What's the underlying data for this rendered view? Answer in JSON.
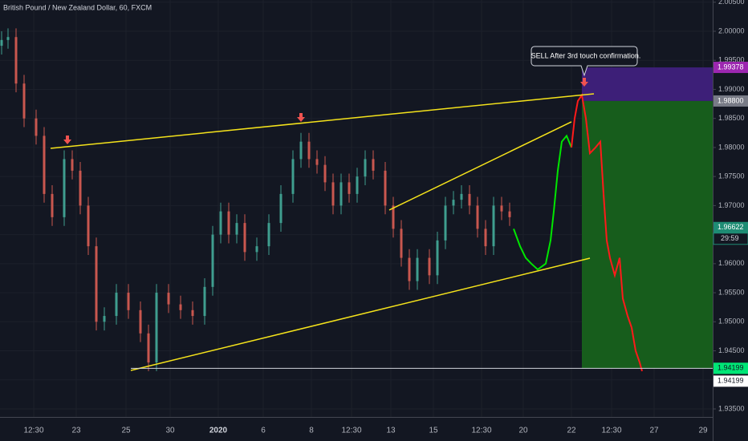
{
  "chart_data": {
    "type": "candlestick",
    "title": "British Pound / New Zealand Dollar, 60, FXCM",
    "annotation": "SELL After 3rd touch confirmation.",
    "countdown": "29:59",
    "xlim": [
      0,
      222
    ],
    "xticks": [
      {
        "value": 10.5,
        "label": "12:30"
      },
      {
        "value": 23.75,
        "label": "23"
      },
      {
        "value": 39.25,
        "label": "25"
      },
      {
        "value": 53,
        "label": "30"
      },
      {
        "value": 68,
        "label": "2020"
      },
      {
        "value": 82,
        "label": "6"
      },
      {
        "value": 97,
        "label": "8"
      },
      {
        "value": 109.5,
        "label": "12:30"
      },
      {
        "value": 121.75,
        "label": "13"
      },
      {
        "value": 135,
        "label": "15"
      },
      {
        "value": 150,
        "label": "12:30"
      },
      {
        "value": 163,
        "label": "20"
      },
      {
        "value": 178,
        "label": "22"
      },
      {
        "value": 190.5,
        "label": "12:30"
      },
      {
        "value": 203.75,
        "label": "27"
      },
      {
        "value": 219,
        "label": "29"
      }
    ],
    "ylim": [
      1.93362,
      2.00538
    ],
    "yticks": [
      {
        "value": 1.935,
        "label": "1.93500"
      },
      {
        "value": 1.94,
        "label": "1.94000"
      },
      {
        "value": 1.945,
        "label": "1.94500"
      },
      {
        "value": 1.95,
        "label": "1.95000"
      },
      {
        "value": 1.955,
        "label": "1.95500"
      },
      {
        "value": 1.96,
        "label": "1.96000"
      },
      {
        "value": 1.965,
        "label": "1.96500"
      },
      {
        "value": 1.97,
        "label": "1.97000"
      },
      {
        "value": 1.975,
        "label": "1.97500"
      },
      {
        "value": 1.98,
        "label": "1.98000"
      },
      {
        "value": 1.985,
        "label": "1.98500"
      },
      {
        "value": 1.99,
        "label": "1.99000"
      },
      {
        "value": 1.995,
        "label": "1.99500"
      },
      {
        "value": 2.0,
        "label": "2.00000"
      },
      {
        "value": 2.005,
        "label": "2.00500"
      }
    ],
    "grid": true,
    "up_color": "#3f9e8f",
    "down_color": "#c9574f",
    "x": [
      0.5,
      2.5,
      5,
      7.5,
      11.25,
      13.75,
      16.25,
      20,
      22.5,
      25,
      27.5,
      30,
      32.5,
      36.25,
      40,
      43.75,
      46.25,
      48.75,
      52.5,
      56.25,
      60,
      63.75,
      66.25,
      68.75,
      71.25,
      73.75,
      76.25,
      80,
      83.75,
      87.5,
      91.25,
      93.75,
      96.25,
      98.75,
      101.25,
      103.75,
      106.25,
      108.75,
      111.25,
      113.75,
      116.25,
      120,
      122.5,
      125,
      127.5,
      130,
      133.75,
      136.25,
      138.75,
      141.25,
      143.75,
      146.25,
      148.75,
      151.25,
      153.75,
      156.25,
      158.75
    ],
    "open": [
      1.9975,
      1.9985,
      1.999,
      1.991,
      1.985,
      1.982,
      1.972,
      1.968,
      1.978,
      1.976,
      1.97,
      1.963,
      1.95,
      1.951,
      1.955,
      1.952,
      1.948,
      1.943,
      1.955,
      1.953,
      1.952,
      1.951,
      1.956,
      1.965,
      1.969,
      1.965,
      1.967,
      1.962,
      1.963,
      1.967,
      1.972,
      1.978,
      1.981,
      1.978,
      1.977,
      1.974,
      1.97,
      1.974,
      1.972,
      1.975,
      1.978,
      1.976,
      1.97,
      1.966,
      1.961,
      1.957,
      1.961,
      1.958,
      1.964,
      1.97,
      1.971,
      1.972,
      1.97,
      1.966,
      1.963,
      1.97,
      1.969
    ],
    "high": [
      2.0,
      2.0005,
      2.0005,
      1.9925,
      1.9865,
      1.9835,
      1.9735,
      1.9795,
      1.9795,
      1.9775,
      1.9715,
      1.9645,
      1.9525,
      1.9565,
      1.9565,
      1.9535,
      1.9495,
      1.9565,
      1.9565,
      1.9545,
      1.9535,
      1.9575,
      1.9665,
      1.9705,
      1.9705,
      1.9685,
      1.9685,
      1.9645,
      1.9685,
      1.9735,
      1.9795,
      1.9825,
      1.9825,
      1.9795,
      1.9785,
      1.9755,
      1.9755,
      1.9755,
      1.9765,
      1.9795,
      1.9795,
      1.9775,
      1.9715,
      1.9675,
      1.9625,
      1.9625,
      1.9625,
      1.9655,
      1.9715,
      1.9725,
      1.9735,
      1.9735,
      1.9715,
      1.9675,
      1.9715,
      1.9715,
      1.9705
    ],
    "low": [
      1.996,
      1.997,
      1.9895,
      1.9835,
      1.9805,
      1.9705,
      1.9665,
      1.9665,
      1.9745,
      1.9685,
      1.9615,
      1.9485,
      1.9485,
      1.9495,
      1.9505,
      1.9465,
      1.9415,
      1.9415,
      1.9515,
      1.9505,
      1.9495,
      1.9495,
      1.9545,
      1.9635,
      1.9635,
      1.9635,
      1.9605,
      1.9605,
      1.9615,
      1.9655,
      1.9705,
      1.9765,
      1.9765,
      1.9755,
      1.9725,
      1.9685,
      1.9685,
      1.9705,
      1.9705,
      1.9735,
      1.9745,
      1.9685,
      1.9645,
      1.9595,
      1.9555,
      1.9555,
      1.9565,
      1.9565,
      1.9625,
      1.9685,
      1.9695,
      1.9685,
      1.9645,
      1.9615,
      1.9615,
      1.9675,
      1.9665
    ],
    "close": [
      1.9985,
      1.999,
      1.991,
      1.985,
      1.982,
      1.972,
      1.968,
      1.978,
      1.976,
      1.97,
      1.963,
      1.95,
      1.951,
      1.955,
      1.952,
      1.948,
      1.943,
      1.955,
      1.953,
      1.952,
      1.951,
      1.956,
      1.965,
      1.969,
      1.965,
      1.967,
      1.962,
      1.963,
      1.967,
      1.972,
      1.978,
      1.981,
      1.978,
      1.977,
      1.974,
      1.97,
      1.974,
      1.972,
      1.975,
      1.978,
      1.976,
      1.97,
      1.966,
      1.961,
      1.957,
      1.961,
      1.958,
      1.964,
      1.97,
      1.971,
      1.972,
      1.97,
      1.966,
      1.963,
      1.97,
      1.969,
      1.968
    ],
    "lines": [
      {
        "color": "#00e600",
        "x": [
          160,
          162,
          163.75,
          165.5,
          167.5,
          170,
          171.5,
          172.5,
          173.75,
          175,
          176.5,
          178
        ],
        "values": [
          1.966,
          1.963,
          1.961,
          1.96,
          1.959,
          1.96,
          1.964,
          1.969,
          1.976,
          1.981,
          1.982,
          1.98
        ]
      },
      {
        "color": "#ff1a1a",
        "x": [
          178,
          179,
          180,
          181.25,
          182.5,
          183.75,
          185.5,
          187,
          188,
          189,
          190,
          191.5,
          193,
          194,
          195.5,
          196.75,
          198,
          199.25,
          200
        ],
        "values": [
          1.98,
          1.985,
          1.988,
          1.989,
          1.985,
          1.979,
          1.98,
          1.981,
          1.972,
          1.964,
          1.961,
          1.958,
          1.961,
          1.954,
          1.951,
          1.949,
          1.945,
          1.943,
          1.9415
        ]
      }
    ],
    "trendlines": [
      {
        "color": "#f5e31b",
        "x": [
          15.75,
          185
        ],
        "values": [
          1.97985,
          1.98924
        ]
      },
      {
        "color": "#f5e31b",
        "x": [
          40.75,
          183.75
        ],
        "values": [
          1.94162,
          1.96094
        ]
      },
      {
        "color": "#f5e31b",
        "x": [
          121.25,
          178
        ],
        "values": [
          1.96923,
          1.98441
        ]
      },
      {
        "color": "#d1d4dc",
        "x": [
          40.75,
          222
        ],
        "values": [
          1.94199,
          1.94199
        ]
      }
    ],
    "markers": {
      "color": "#ef5350",
      "x": [
        21,
        93.75,
        182
      ],
      "values": [
        1.98054,
        1.9844,
        1.99048
      ]
    },
    "position": {
      "x": [
        181.25,
        222
      ],
      "stop": 1.99378,
      "entry": 1.988,
      "target": 1.94199,
      "stop_color": "#3d1f78",
      "target_color": "#175d1c"
    },
    "price_labels": [
      {
        "value": 1.99378,
        "color": "#9c27b0",
        "text_color": "#ffffff"
      },
      {
        "value": 1.988,
        "label": "1.98800",
        "color": "#787b86",
        "text_color": "#ffffff"
      },
      {
        "value": 1.96622,
        "color": "#1e8c74",
        "text_color": "#ffffff"
      },
      {
        "value": 1.94199,
        "color": "#00e676",
        "text_color": "#131722"
      },
      {
        "value": 1.94199,
        "color": "#ffffff",
        "text_color": "#131722"
      }
    ]
  }
}
